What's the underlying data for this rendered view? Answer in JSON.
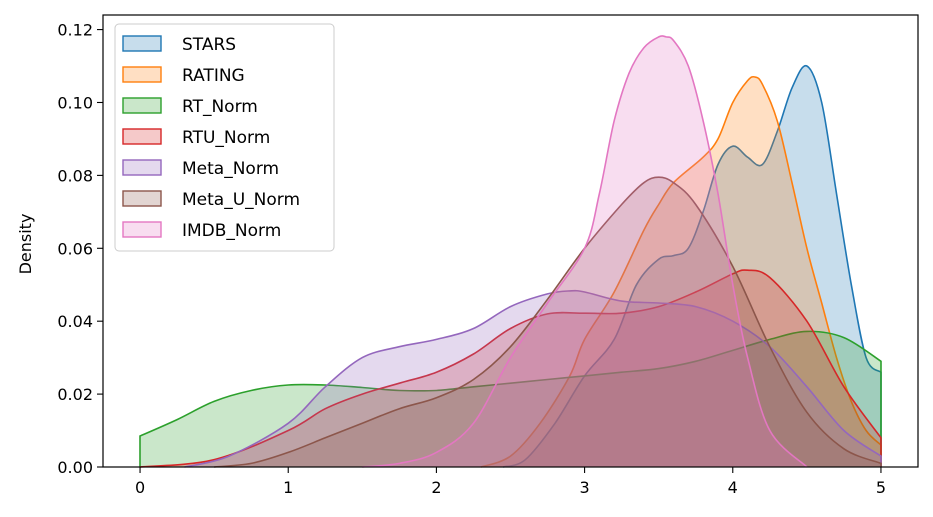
{
  "chart_data": {
    "type": "area",
    "title": "",
    "xlabel": "",
    "ylabel": "Density",
    "xlim": [
      -0.25,
      5.25
    ],
    "ylim": [
      0,
      0.124
    ],
    "xticks": [
      0,
      1,
      2,
      3,
      4,
      5
    ],
    "yticks": [
      "0.00",
      "0.02",
      "0.04",
      "0.06",
      "0.08",
      "0.10",
      "0.12"
    ],
    "grid": false,
    "legend_position": "top-left",
    "series": [
      {
        "name": "STARS",
        "color": "#1f77b4",
        "x": [
          2.45,
          2.6,
          2.8,
          3.0,
          3.2,
          3.35,
          3.5,
          3.6,
          3.7,
          3.8,
          3.9,
          4.0,
          4.1,
          4.2,
          4.3,
          4.4,
          4.5,
          4.6,
          4.7,
          4.8,
          4.9,
          5.0
        ],
        "y": [
          0.0,
          0.002,
          0.012,
          0.025,
          0.035,
          0.05,
          0.057,
          0.058,
          0.06,
          0.07,
          0.083,
          0.088,
          0.085,
          0.083,
          0.092,
          0.104,
          0.11,
          0.1,
          0.075,
          0.05,
          0.03,
          0.026
        ]
      },
      {
        "name": "RATING",
        "color": "#ff7f0e",
        "x": [
          2.3,
          2.5,
          2.7,
          2.9,
          3.0,
          3.2,
          3.4,
          3.5,
          3.6,
          3.8,
          3.9,
          4.0,
          4.1,
          4.15,
          4.2,
          4.3,
          4.4,
          4.5,
          4.6,
          4.7,
          4.8,
          4.9,
          5.0
        ],
        "y": [
          0.0,
          0.003,
          0.012,
          0.025,
          0.035,
          0.048,
          0.065,
          0.072,
          0.078,
          0.085,
          0.09,
          0.1,
          0.106,
          0.107,
          0.105,
          0.095,
          0.078,
          0.06,
          0.045,
          0.03,
          0.018,
          0.01,
          0.006
        ]
      },
      {
        "name": "RT_Norm",
        "color": "#2ca02c",
        "x": [
          0.0,
          0.25,
          0.5,
          0.75,
          1.0,
          1.25,
          1.5,
          1.75,
          2.0,
          2.25,
          2.5,
          2.75,
          3.0,
          3.25,
          3.5,
          3.75,
          4.0,
          4.25,
          4.5,
          4.75,
          5.0
        ],
        "y": [
          0.0085,
          0.013,
          0.018,
          0.021,
          0.0225,
          0.0225,
          0.0218,
          0.021,
          0.021,
          0.022,
          0.023,
          0.024,
          0.025,
          0.026,
          0.027,
          0.029,
          0.032,
          0.035,
          0.0372,
          0.0355,
          0.029
        ]
      },
      {
        "name": "RTU_Norm",
        "color": "#d62728",
        "x": [
          0.0,
          0.5,
          1.0,
          1.25,
          1.5,
          1.75,
          2.0,
          2.25,
          2.5,
          2.75,
          3.0,
          3.25,
          3.5,
          3.75,
          4.0,
          4.1,
          4.25,
          4.5,
          4.75,
          5.0
        ],
        "y": [
          0.0,
          0.002,
          0.01,
          0.016,
          0.02,
          0.023,
          0.026,
          0.031,
          0.038,
          0.042,
          0.0422,
          0.0422,
          0.044,
          0.048,
          0.053,
          0.054,
          0.052,
          0.04,
          0.022,
          0.008
        ]
      },
      {
        "name": "Meta_Norm",
        "color": "#9467bd",
        "x": [
          0.3,
          0.6,
          1.0,
          1.25,
          1.5,
          1.75,
          2.0,
          2.25,
          2.5,
          2.75,
          2.9,
          3.0,
          3.25,
          3.5,
          3.75,
          4.0,
          4.25,
          4.5,
          4.75,
          5.0
        ],
        "y": [
          0.0,
          0.003,
          0.012,
          0.022,
          0.03,
          0.033,
          0.035,
          0.038,
          0.044,
          0.0475,
          0.0483,
          0.048,
          0.0455,
          0.045,
          0.044,
          0.04,
          0.033,
          0.022,
          0.01,
          0.003
        ]
      },
      {
        "name": "Meta_U_Norm",
        "color": "#8c564b",
        "x": [
          0.5,
          0.75,
          1.0,
          1.25,
          1.5,
          1.75,
          2.0,
          2.25,
          2.5,
          2.75,
          3.0,
          3.25,
          3.4,
          3.5,
          3.6,
          3.75,
          4.0,
          4.25,
          4.5,
          4.75,
          5.0
        ],
        "y": [
          0.0,
          0.001,
          0.004,
          0.008,
          0.012,
          0.016,
          0.019,
          0.024,
          0.033,
          0.046,
          0.06,
          0.072,
          0.078,
          0.0795,
          0.078,
          0.072,
          0.055,
          0.033,
          0.015,
          0.005,
          0.001
        ]
      },
      {
        "name": "IMDB_Norm",
        "color": "#e377c2",
        "x": [
          1.5,
          1.75,
          2.0,
          2.25,
          2.5,
          2.75,
          3.0,
          3.1,
          3.2,
          3.3,
          3.4,
          3.5,
          3.55,
          3.6,
          3.7,
          3.8,
          3.9,
          4.0,
          4.1,
          4.25,
          4.5
        ],
        "y": [
          0.0,
          0.001,
          0.004,
          0.012,
          0.03,
          0.045,
          0.06,
          0.075,
          0.095,
          0.108,
          0.115,
          0.118,
          0.118,
          0.117,
          0.11,
          0.095,
          0.075,
          0.05,
          0.03,
          0.01,
          0.0
        ]
      }
    ]
  }
}
